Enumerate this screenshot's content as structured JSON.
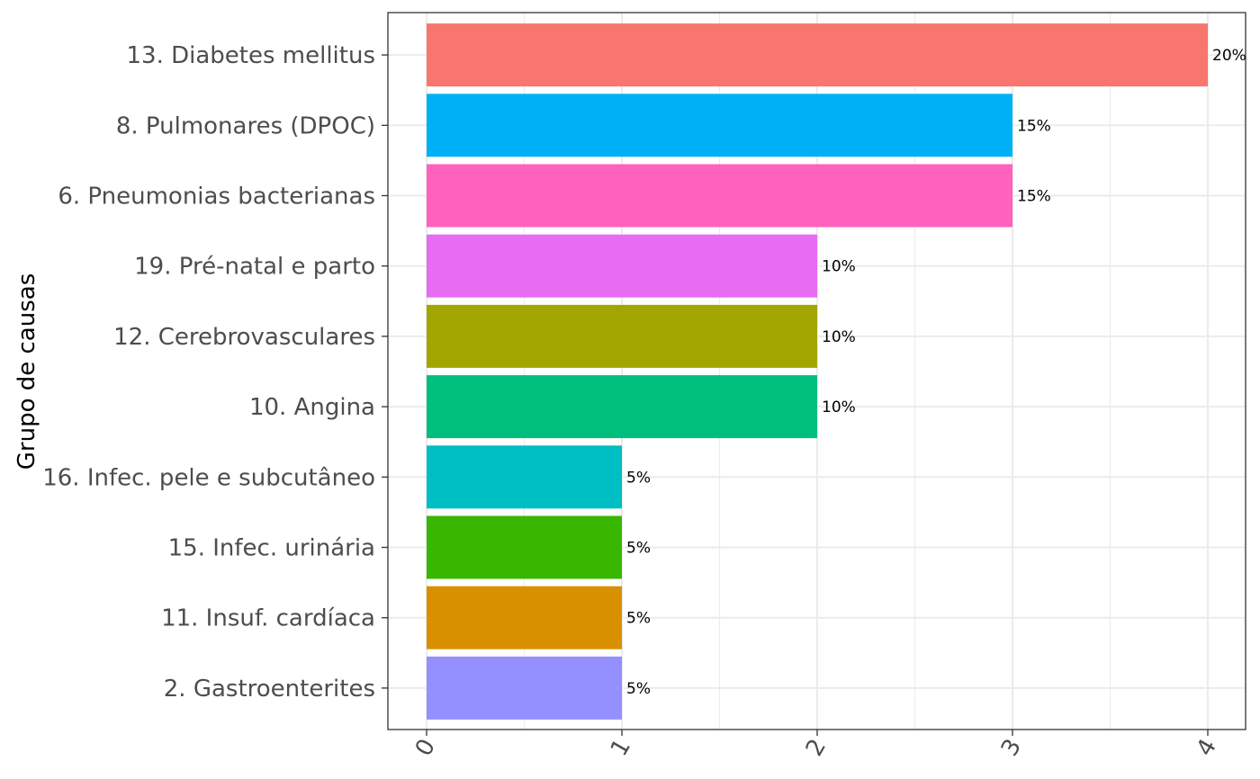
{
  "chart_data": {
    "type": "bar",
    "orientation": "horizontal",
    "title": "",
    "xlabel": "",
    "ylabel": "Grupo de causas",
    "xlim": [
      0,
      4
    ],
    "x_ticks": [
      "0",
      "1",
      "2",
      "3",
      "4"
    ],
    "grid": true,
    "legend": "none",
    "categories": [
      "13. Diabetes mellitus",
      "8. Pulmonares (DPOC)",
      "6. Pneumonias bacterianas",
      "19. Pré-natal e parto",
      "12. Cerebrovasculares",
      "10. Angina",
      "16. Infec. pele e subcutâneo",
      "15. Infec. urinária",
      "11. Insuf. cardíaca",
      "2. Gastroenterites"
    ],
    "values": [
      4,
      3,
      3,
      2,
      2,
      2,
      1,
      1,
      1,
      1
    ],
    "labels": [
      "20%",
      "15%",
      "15%",
      "10%",
      "10%",
      "10%",
      "5%",
      "5%",
      "5%",
      "5%"
    ],
    "colors": [
      "#F8766D",
      "#00B0F6",
      "#FF62BC",
      "#E76BF3",
      "#A3A500",
      "#00BF7D",
      "#00BFC4",
      "#39B600",
      "#D89000",
      "#9590FF"
    ]
  }
}
